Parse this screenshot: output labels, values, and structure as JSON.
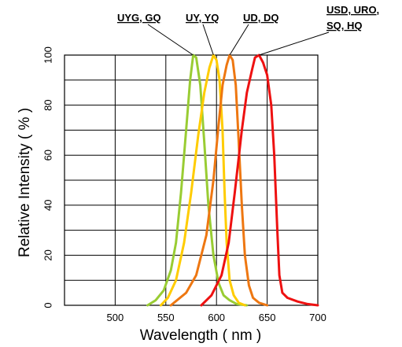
{
  "chart_data": {
    "type": "line",
    "xlabel": "Wavelength ( nm )",
    "ylabel": "Relative Intensity ( % )",
    "xlim": [
      450,
      700
    ],
    "ylim": [
      0,
      100
    ],
    "x_ticks": [
      "500",
      "550",
      "600",
      "650",
      "700"
    ],
    "y_ticks": [
      "0",
      "20",
      "40",
      "60",
      "80",
      "100"
    ],
    "grid": true,
    "series": [
      {
        "name": "UYG, GQ",
        "color": "#99cc33",
        "x": [
          532,
          540,
          548,
          555,
          560,
          565,
          570,
          574,
          577,
          580,
          584,
          588,
          592,
          597,
          602,
          607,
          613,
          620,
          630
        ],
        "y": [
          0,
          2,
          6,
          14,
          25,
          45,
          70,
          90,
          100,
          99,
          88,
          65,
          40,
          20,
          9,
          4,
          2,
          0.5,
          0
        ]
      },
      {
        "name": "UY, YQ",
        "color": "#ffcc00",
        "x": [
          545,
          552,
          560,
          568,
          575,
          582,
          588,
          593,
          597,
          600,
          603,
          606,
          608,
          610,
          613,
          617,
          622,
          628
        ],
        "y": [
          0,
          3,
          10,
          25,
          45,
          68,
          85,
          95,
          100,
          98,
          90,
          70,
          45,
          25,
          10,
          4,
          1,
          0
        ]
      },
      {
        "name": "UD, DQ",
        "color": "#ee7711",
        "x": [
          555,
          570,
          580,
          590,
          597,
          602,
          606,
          610,
          613,
          616,
          619,
          622,
          625,
          628,
          632,
          636,
          642,
          650
        ],
        "y": [
          0,
          5,
          12,
          28,
          50,
          72,
          88,
          96,
          100,
          98,
          88,
          65,
          40,
          20,
          8,
          3,
          1,
          0
        ]
      },
      {
        "name": "USD, URO, SQ, HQ",
        "color": "#ee1111",
        "x": [
          585,
          595,
          605,
          612,
          618,
          625,
          630,
          635,
          638,
          642,
          646,
          650,
          654,
          657,
          660,
          662,
          665,
          670,
          680,
          690,
          700
        ],
        "y": [
          0,
          4,
          12,
          25,
          45,
          70,
          85,
          94,
          99,
          100,
          97,
          92,
          80,
          60,
          30,
          12,
          5,
          3,
          1.5,
          0.5,
          0
        ]
      }
    ]
  }
}
